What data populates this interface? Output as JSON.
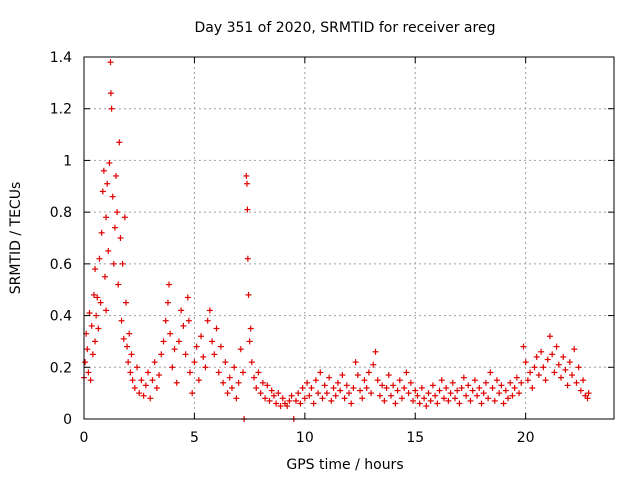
{
  "chart_data": {
    "type": "scatter",
    "title": "Day 351 of 2020, SRMTID for receiver areg",
    "xlabel": "GPS time / hours",
    "ylabel": "SRMTID / TECUs",
    "xlim": [
      0,
      24
    ],
    "ylim": [
      0,
      1.4
    ],
    "xticks": [
      0,
      5,
      10,
      15,
      20
    ],
    "yticks": [
      0,
      0.2,
      0.4,
      0.6,
      0.8,
      1,
      1.2,
      1.4
    ],
    "xtick_labels": [
      "0",
      "5",
      "10",
      "15",
      "20"
    ],
    "ytick_labels": [
      "0",
      "0.2",
      "0.4",
      "0.6",
      "0.8",
      "1",
      "1.2",
      "1.4"
    ],
    "grid": true,
    "marker": "plus",
    "color": "#e00000",
    "series": [
      {
        "name": "SRMTID",
        "points": [
          [
            0.0,
            0.16
          ],
          [
            0.05,
            0.22
          ],
          [
            0.1,
            0.33
          ],
          [
            0.15,
            0.27
          ],
          [
            0.2,
            0.18
          ],
          [
            0.25,
            0.41
          ],
          [
            0.3,
            0.15
          ],
          [
            0.35,
            0.36
          ],
          [
            0.4,
            0.25
          ],
          [
            0.45,
            0.48
          ],
          [
            0.5,
            0.58
          ],
          [
            0.5,
            0.3
          ],
          [
            0.55,
            0.4
          ],
          [
            0.6,
            0.47
          ],
          [
            0.65,
            0.35
          ],
          [
            0.7,
            0.62
          ],
          [
            0.75,
            0.45
          ],
          [
            0.8,
            0.72
          ],
          [
            0.85,
            0.88
          ],
          [
            0.9,
            0.96
          ],
          [
            0.95,
            0.55
          ],
          [
            1.0,
            0.78
          ],
          [
            1.0,
            0.42
          ],
          [
            1.05,
            0.91
          ],
          [
            1.1,
            0.65
          ],
          [
            1.15,
            0.99
          ],
          [
            1.2,
            1.38
          ],
          [
            1.22,
            1.26
          ],
          [
            1.25,
            1.2
          ],
          [
            1.3,
            0.86
          ],
          [
            1.35,
            0.6
          ],
          [
            1.4,
            0.74
          ],
          [
            1.45,
            0.94
          ],
          [
            1.5,
            0.8
          ],
          [
            1.55,
            0.52
          ],
          [
            1.6,
            1.07
          ],
          [
            1.65,
            0.7
          ],
          [
            1.7,
            0.38
          ],
          [
            1.75,
            0.6
          ],
          [
            1.8,
            0.31
          ],
          [
            1.85,
            0.78
          ],
          [
            1.9,
            0.45
          ],
          [
            1.95,
            0.28
          ],
          [
            2.0,
            0.22
          ],
          [
            2.05,
            0.33
          ],
          [
            2.1,
            0.18
          ],
          [
            2.15,
            0.25
          ],
          [
            2.2,
            0.15
          ],
          [
            2.3,
            0.12
          ],
          [
            2.4,
            0.2
          ],
          [
            2.5,
            0.1
          ],
          [
            2.6,
            0.15
          ],
          [
            2.7,
            0.09
          ],
          [
            2.8,
            0.13
          ],
          [
            2.9,
            0.18
          ],
          [
            3.0,
            0.08
          ],
          [
            3.1,
            0.15
          ],
          [
            3.2,
            0.22
          ],
          [
            3.3,
            0.12
          ],
          [
            3.4,
            0.17
          ],
          [
            3.5,
            0.25
          ],
          [
            3.6,
            0.3
          ],
          [
            3.7,
            0.38
          ],
          [
            3.8,
            0.45
          ],
          [
            3.85,
            0.52
          ],
          [
            3.9,
            0.33
          ],
          [
            4.0,
            0.2
          ],
          [
            4.1,
            0.27
          ],
          [
            4.2,
            0.14
          ],
          [
            4.3,
            0.3
          ],
          [
            4.4,
            0.42
          ],
          [
            4.5,
            0.36
          ],
          [
            4.6,
            0.25
          ],
          [
            4.7,
            0.47
          ],
          [
            4.75,
            0.38
          ],
          [
            4.8,
            0.18
          ],
          [
            4.9,
            0.1
          ],
          [
            5.0,
            0.22
          ],
          [
            5.1,
            0.28
          ],
          [
            5.2,
            0.15
          ],
          [
            5.3,
            0.32
          ],
          [
            5.4,
            0.24
          ],
          [
            5.5,
            0.2
          ],
          [
            5.6,
            0.38
          ],
          [
            5.7,
            0.42
          ],
          [
            5.8,
            0.3
          ],
          [
            5.9,
            0.25
          ],
          [
            6.0,
            0.35
          ],
          [
            6.1,
            0.18
          ],
          [
            6.2,
            0.28
          ],
          [
            6.3,
            0.14
          ],
          [
            6.4,
            0.22
          ],
          [
            6.5,
            0.1
          ],
          [
            6.6,
            0.16
          ],
          [
            6.7,
            0.12
          ],
          [
            6.8,
            0.2
          ],
          [
            6.9,
            0.08
          ],
          [
            7.0,
            0.14
          ],
          [
            7.1,
            0.27
          ],
          [
            7.2,
            0.18
          ],
          [
            7.25,
            0.0
          ],
          [
            7.35,
            0.94
          ],
          [
            7.38,
            0.91
          ],
          [
            7.4,
            0.81
          ],
          [
            7.42,
            0.62
          ],
          [
            7.45,
            0.48
          ],
          [
            7.5,
            0.3
          ],
          [
            7.55,
            0.35
          ],
          [
            7.6,
            0.22
          ],
          [
            7.7,
            0.16
          ],
          [
            7.8,
            0.12
          ],
          [
            7.9,
            0.18
          ],
          [
            8.0,
            0.1
          ],
          [
            8.1,
            0.14
          ],
          [
            8.2,
            0.08
          ],
          [
            8.3,
            0.13
          ],
          [
            8.4,
            0.07
          ],
          [
            8.5,
            0.11
          ],
          [
            8.6,
            0.09
          ],
          [
            8.7,
            0.06
          ],
          [
            8.8,
            0.1
          ],
          [
            8.9,
            0.05
          ],
          [
            9.0,
            0.08
          ],
          [
            9.1,
            0.06
          ],
          [
            9.2,
            0.05
          ],
          [
            9.3,
            0.07
          ],
          [
            9.4,
            0.09
          ],
          [
            9.5,
            0.0
          ],
          [
            9.6,
            0.07
          ],
          [
            9.7,
            0.1
          ],
          [
            9.8,
            0.06
          ],
          [
            9.9,
            0.12
          ],
          [
            10.0,
            0.08
          ],
          [
            10.1,
            0.14
          ],
          [
            10.2,
            0.09
          ],
          [
            10.3,
            0.12
          ],
          [
            10.4,
            0.06
          ],
          [
            10.5,
            0.15
          ],
          [
            10.6,
            0.1
          ],
          [
            10.7,
            0.18
          ],
          [
            10.8,
            0.08
          ],
          [
            10.9,
            0.13
          ],
          [
            11.0,
            0.1
          ],
          [
            11.1,
            0.16
          ],
          [
            11.2,
            0.07
          ],
          [
            11.3,
            0.12
          ],
          [
            11.4,
            0.09
          ],
          [
            11.5,
            0.14
          ],
          [
            11.6,
            0.11
          ],
          [
            11.7,
            0.17
          ],
          [
            11.8,
            0.08
          ],
          [
            11.9,
            0.13
          ],
          [
            12.0,
            0.1
          ],
          [
            12.1,
            0.06
          ],
          [
            12.2,
            0.12
          ],
          [
            12.3,
            0.22
          ],
          [
            12.4,
            0.17
          ],
          [
            12.5,
            0.11
          ],
          [
            12.6,
            0.08
          ],
          [
            12.7,
            0.15
          ],
          [
            12.8,
            0.12
          ],
          [
            12.9,
            0.18
          ],
          [
            13.0,
            0.1
          ],
          [
            13.1,
            0.21
          ],
          [
            13.2,
            0.26
          ],
          [
            13.3,
            0.15
          ],
          [
            13.4,
            0.09
          ],
          [
            13.5,
            0.13
          ],
          [
            13.6,
            0.07
          ],
          [
            13.7,
            0.12
          ],
          [
            13.8,
            0.17
          ],
          [
            13.9,
            0.09
          ],
          [
            14.0,
            0.13
          ],
          [
            14.1,
            0.06
          ],
          [
            14.2,
            0.11
          ],
          [
            14.3,
            0.15
          ],
          [
            14.4,
            0.08
          ],
          [
            14.5,
            0.12
          ],
          [
            14.6,
            0.18
          ],
          [
            14.7,
            0.1
          ],
          [
            14.8,
            0.14
          ],
          [
            14.9,
            0.07
          ],
          [
            15.0,
            0.11
          ],
          [
            15.1,
            0.09
          ],
          [
            15.2,
            0.06
          ],
          [
            15.3,
            0.12
          ],
          [
            15.4,
            0.08
          ],
          [
            15.5,
            0.05
          ],
          [
            15.6,
            0.1
          ],
          [
            15.7,
            0.07
          ],
          [
            15.8,
            0.13
          ],
          [
            15.9,
            0.09
          ],
          [
            16.0,
            0.06
          ],
          [
            16.1,
            0.11
          ],
          [
            16.2,
            0.15
          ],
          [
            16.3,
            0.08
          ],
          [
            16.4,
            0.12
          ],
          [
            16.5,
            0.07
          ],
          [
            16.6,
            0.1
          ],
          [
            16.7,
            0.14
          ],
          [
            16.8,
            0.08
          ],
          [
            16.9,
            0.11
          ],
          [
            17.0,
            0.06
          ],
          [
            17.1,
            0.12
          ],
          [
            17.2,
            0.16
          ],
          [
            17.3,
            0.09
          ],
          [
            17.4,
            0.13
          ],
          [
            17.5,
            0.07
          ],
          [
            17.6,
            0.11
          ],
          [
            17.7,
            0.15
          ],
          [
            17.8,
            0.09
          ],
          [
            17.9,
            0.12
          ],
          [
            18.0,
            0.06
          ],
          [
            18.1,
            0.1
          ],
          [
            18.2,
            0.14
          ],
          [
            18.3,
            0.08
          ],
          [
            18.4,
            0.18
          ],
          [
            18.5,
            0.12
          ],
          [
            18.6,
            0.07
          ],
          [
            18.7,
            0.15
          ],
          [
            18.8,
            0.1
          ],
          [
            18.9,
            0.13
          ],
          [
            19.0,
            0.06
          ],
          [
            19.1,
            0.11
          ],
          [
            19.2,
            0.08
          ],
          [
            19.3,
            0.14
          ],
          [
            19.4,
            0.09
          ],
          [
            19.5,
            0.12
          ],
          [
            19.6,
            0.16
          ],
          [
            19.7,
            0.1
          ],
          [
            19.8,
            0.14
          ],
          [
            19.9,
            0.28
          ],
          [
            20.0,
            0.22
          ],
          [
            20.1,
            0.15
          ],
          [
            20.2,
            0.18
          ],
          [
            20.3,
            0.12
          ],
          [
            20.4,
            0.2
          ],
          [
            20.5,
            0.24
          ],
          [
            20.6,
            0.17
          ],
          [
            20.7,
            0.26
          ],
          [
            20.8,
            0.2
          ],
          [
            20.9,
            0.15
          ],
          [
            21.0,
            0.23
          ],
          [
            21.1,
            0.32
          ],
          [
            21.2,
            0.25
          ],
          [
            21.3,
            0.18
          ],
          [
            21.4,
            0.28
          ],
          [
            21.5,
            0.21
          ],
          [
            21.6,
            0.16
          ],
          [
            21.7,
            0.24
          ],
          [
            21.8,
            0.19
          ],
          [
            21.9,
            0.13
          ],
          [
            22.0,
            0.22
          ],
          [
            22.1,
            0.17
          ],
          [
            22.2,
            0.27
          ],
          [
            22.3,
            0.14
          ],
          [
            22.4,
            0.2
          ],
          [
            22.5,
            0.11
          ],
          [
            22.6,
            0.15
          ],
          [
            22.7,
            0.09
          ],
          [
            22.8,
            0.08
          ],
          [
            22.85,
            0.1
          ]
        ]
      }
    ]
  }
}
